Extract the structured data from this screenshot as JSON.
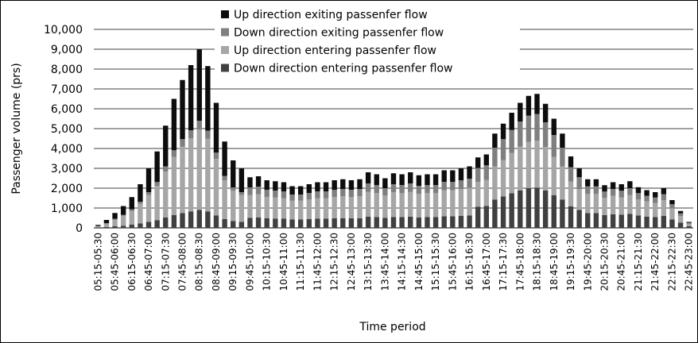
{
  "chart_data": {
    "type": "stacked_bar",
    "ylabel": "Passenger volume (prs)",
    "xlabel": "Time period",
    "categories": [
      "05:15-05:30",
      null,
      "05:45-06:00",
      null,
      "06:15-06:30",
      null,
      "06:45-07:00",
      null,
      "07:15-07:30",
      null,
      "07:45-08:00",
      null,
      "08:15-08:30",
      null,
      "08:45-09:00",
      null,
      "09:15-09:30",
      null,
      "09:45-10:00",
      null,
      "10:15-10:30",
      null,
      "10:45-11:00",
      null,
      "11:15-11:30",
      null,
      "11:45-12:00",
      null,
      "12:15-12:30",
      null,
      "12:45-13:00",
      null,
      "13:15-13:30",
      null,
      "13:45-14:00",
      null,
      "14:15-14:30",
      null,
      "14:45-15:00",
      null,
      "15:15-15:30",
      null,
      "15:45-16:00",
      null,
      "16:15-16:30",
      null,
      "16:45-17:00",
      null,
      "17:15-17:30",
      null,
      "17:45-18:00",
      null,
      "18:15-18:30",
      null,
      "18:45-19:00",
      null,
      "19:15-19:30",
      null,
      "19:45-20:00",
      null,
      "20:15-20:30",
      null,
      "20:45-21:00",
      null,
      "21:15-21:30",
      null,
      "21:45-22:00",
      null,
      "22:15-22:30",
      null,
      "22:45-23:00"
    ],
    "series": [
      {
        "name": "Down direction entering passenfer flow",
        "color": "#404040",
        "values": [
          20,
          40,
          80,
          110,
          160,
          220,
          300,
          390,
          520,
          650,
          750,
          820,
          900,
          820,
          630,
          440,
          340,
          300,
          510,
          520,
          480,
          470,
          460,
          420,
          420,
          440,
          460,
          460,
          480,
          490,
          480,
          490,
          560,
          540,
          500,
          550,
          540,
          560,
          530,
          540,
          540,
          580,
          580,
          600,
          620,
          1070,
          1110,
          1430,
          1580,
          1740,
          1890,
          2000,
          2030,
          1880,
          1650,
          1430,
          1080,
          900,
          740,
          740,
          650,
          690,
          660,
          710,
          620,
          570,
          540,
          600,
          420,
          260,
          90
        ]
      },
      {
        "name": "Up direction entering passenfer flow",
        "color": "#a6a6a6",
        "values": [
          70,
          180,
          340,
          500,
          700,
          990,
          1350,
          1730,
          2320,
          2930,
          3350,
          3690,
          4050,
          3670,
          2840,
          1960,
          1530,
          1350,
          1150,
          1170,
          1080,
          1060,
          1040,
          950,
          950,
          990,
          1040,
          1040,
          1080,
          1100,
          1080,
          1100,
          1260,
          1220,
          1130,
          1240,
          1220,
          1260,
          1190,
          1220,
          1220,
          1310,
          1310,
          1350,
          1400,
          1240,
          1300,
          1660,
          1840,
          2030,
          2210,
          2330,
          2360,
          2190,
          1930,
          1660,
          1260,
          1050,
          980,
          980,
          860,
          920,
          880,
          940,
          820,
          760,
          720,
          800,
          560,
          340,
          120
        ]
      },
      {
        "name": "Down direction exiting passenfer flow",
        "color": "#7f7f7f",
        "values": [
          10,
          20,
          40,
          50,
          80,
          110,
          150,
          190,
          260,
          330,
          370,
          410,
          450,
          410,
          320,
          220,
          170,
          150,
          380,
          390,
          360,
          350,
          340,
          310,
          310,
          330,
          340,
          340,
          360,
          370,
          360,
          370,
          420,
          400,
          370,
          410,
          400,
          420,
          400,
          400,
          400,
          430,
          430,
          450,
          460,
          710,
          740,
          950,
          1050,
          1160,
          1260,
          1330,
          1350,
          1250,
          1100,
          950,
          720,
          600,
          370,
          370,
          320,
          350,
          330,
          350,
          310,
          290,
          270,
          300,
          210,
          130,
          45
        ]
      },
      {
        "name": "Up direction exiting passenfer flow",
        "color": "#0d0d0d",
        "values": [
          50,
          160,
          290,
          440,
          610,
          880,
          1200,
          1540,
          2050,
          2590,
          2980,
          3280,
          3600,
          3250,
          2510,
          1730,
          1360,
          1200,
          510,
          520,
          480,
          470,
          460,
          420,
          420,
          440,
          460,
          460,
          480,
          490,
          480,
          490,
          560,
          540,
          500,
          550,
          540,
          560,
          530,
          540,
          540,
          580,
          580,
          600,
          620,
          530,
          550,
          710,
          780,
          870,
          940,
          990,
          1010,
          930,
          820,
          710,
          540,
          450,
          360,
          360,
          320,
          340,
          330,
          350,
          300,
          280,
          270,
          300,
          210,
          120,
          45
        ]
      }
    ],
    "ylim": [
      0,
      10000
    ],
    "yticks": [
      0,
      {
        "value": 1000,
        "label": "1,000"
      },
      {
        "value": 2000,
        "label": "2,000"
      },
      {
        "value": 3000,
        "label": "3,000"
      },
      {
        "value": 4000,
        "label": "4,000"
      },
      {
        "value": 5000,
        "label": "5,000"
      },
      {
        "value": 6000,
        "label": "6,000"
      },
      {
        "value": 7000,
        "label": "7,000"
      },
      {
        "value": 8000,
        "label": "8,000"
      },
      {
        "value": 9000,
        "label": "9,000"
      },
      {
        "value": 10000,
        "label": "10,000"
      }
    ],
    "grid": true,
    "legend": "top"
  }
}
